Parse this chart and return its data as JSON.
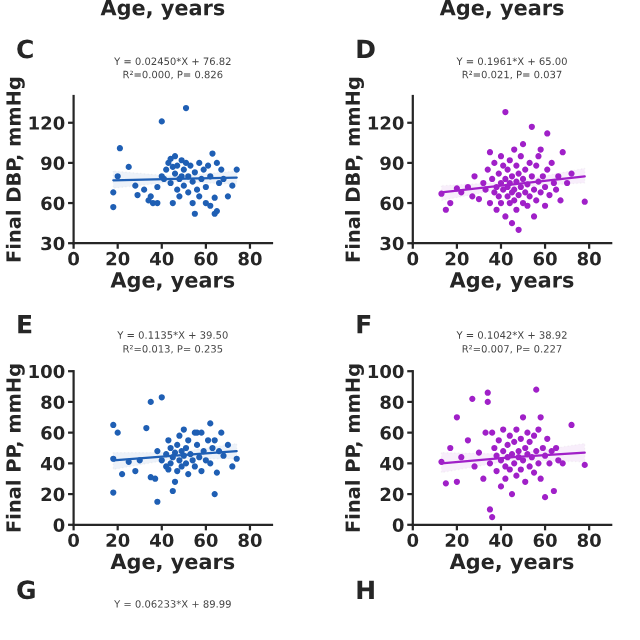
{
  "chart_data": [
    {
      "type": "scatter",
      "title": "C",
      "xlabel": "Age, years",
      "ylabel": "Final DBP, mmHg",
      "xlim": [
        0,
        90
      ],
      "xticks": [
        0,
        20,
        40,
        60,
        80
      ],
      "ylim": [
        30,
        140
      ],
      "yticks": [
        30,
        60,
        90,
        120
      ],
      "grid": false,
      "legend": false,
      "annotations": [
        "Y = 0.02450*X + 76.82",
        "R²=0.000, P= 0.826",
        "Age, years"
      ],
      "series": [
        {
          "marker": "circle",
          "color": "#1f5fb4",
          "x": [
            18,
            18,
            20,
            21,
            25,
            28,
            29,
            32,
            34,
            35,
            36,
            38,
            40,
            38,
            40,
            41,
            42,
            43,
            44,
            44,
            45,
            45,
            46,
            46,
            47,
            47,
            48,
            48,
            49,
            49,
            50,
            50,
            51,
            51,
            52,
            52,
            53,
            54,
            54,
            55,
            55,
            56,
            57,
            57,
            58,
            59,
            60,
            60,
            61,
            62,
            62,
            63,
            64,
            64,
            65,
            65,
            66,
            67,
            68,
            70,
            72,
            74
          ],
          "values": [
            57,
            68,
            80,
            101,
            87,
            73,
            66,
            70,
            62,
            65,
            60,
            60,
            121,
            72,
            80,
            78,
            85,
            90,
            93,
            75,
            60,
            87,
            95,
            82,
            70,
            88,
            78,
            65,
            92,
            80,
            73,
            85,
            131,
            90,
            68,
            80,
            88,
            60,
            76,
            83,
            52,
            70,
            90,
            65,
            78,
            85,
            60,
            72,
            88,
            80,
            58,
            97,
            64,
            52,
            90,
            54,
            75,
            85,
            78,
            65,
            73,
            85
          ]
        },
        {
          "type": "line",
          "marker": "none",
          "color": "#1f5fb4",
          "x": [
            18,
            46,
            74
          ],
          "values": [
            77,
            78,
            79
          ],
          "lower": [
            71,
            76,
            74
          ],
          "upper": [
            84,
            80,
            84
          ]
        }
      ]
    },
    {
      "type": "scatter",
      "title": "D",
      "xlabel": "Age, years",
      "ylabel": "Final DBP, mmHg",
      "xlim": [
        0,
        90
      ],
      "xticks": [
        0,
        20,
        40,
        60,
        80
      ],
      "ylim": [
        30,
        140
      ],
      "yticks": [
        30,
        60,
        90,
        120
      ],
      "grid": false,
      "legend": false,
      "annotations": [
        "Y = 0.1961*X + 65.00",
        "R²=0.021, P= 0.037",
        "Age, years"
      ],
      "series": [
        {
          "marker": "circle",
          "color": "#a020c8",
          "x": [
            13,
            15,
            17,
            20,
            22,
            25,
            27,
            28,
            30,
            32,
            33,
            34,
            35,
            35,
            36,
            37,
            37,
            38,
            38,
            39,
            39,
            40,
            40,
            40,
            41,
            41,
            42,
            42,
            42,
            43,
            43,
            43,
            44,
            44,
            44,
            45,
            45,
            45,
            46,
            46,
            46,
            47,
            47,
            47,
            48,
            48,
            48,
            49,
            49,
            50,
            50,
            50,
            51,
            51,
            52,
            52,
            53,
            53,
            54,
            54,
            55,
            55,
            56,
            56,
            57,
            57,
            58,
            58,
            59,
            60,
            60,
            61,
            61,
            62,
            63,
            64,
            65,
            66,
            67,
            68,
            70,
            72,
            78
          ],
          "values": [
            67,
            55,
            60,
            71,
            68,
            72,
            65,
            80,
            63,
            75,
            70,
            85,
            60,
            98,
            78,
            68,
            90,
            72,
            55,
            82,
            65,
            75,
            95,
            60,
            70,
            88,
            78,
            50,
            128,
            65,
            85,
            72,
            60,
            92,
            75,
            68,
            45,
            80,
            70,
            100,
            62,
            76,
            55,
            88,
            66,
            82,
            40,
            72,
            95,
            60,
            78,
            104,
            68,
            85,
            74,
            58,
            90,
            65,
            117,
            80,
            70,
            50,
            88,
            62,
            76,
            95,
            68,
            100,
            80,
            72,
            58,
            112,
            85,
            66,
            90,
            75,
            70,
            80,
            62,
            98,
            75,
            82,
            61
          ]
        },
        {
          "type": "line",
          "marker": "none",
          "color": "#a020c8",
          "x": [
            13,
            45.5,
            78
          ],
          "values": [
            68,
            74,
            80
          ],
          "lower": [
            62,
            72,
            75
          ],
          "upper": [
            73,
            76,
            86
          ]
        }
      ]
    },
    {
      "type": "scatter",
      "title": "E",
      "xlabel": "Age, years",
      "ylabel": "Final PP, mmHg",
      "xlim": [
        0,
        90
      ],
      "xticks": [
        0,
        20,
        40,
        60,
        80
      ],
      "ylim": [
        0,
        100
      ],
      "yticks": [
        0,
        20,
        40,
        60,
        80,
        100
      ],
      "grid": false,
      "legend": false,
      "annotations": [
        "Y = 0.1135*X + 39.50",
        "R²=0.013, P= 0.235",
        "G",
        "Y = 0.06233*X + 89.99"
      ],
      "series": [
        {
          "marker": "circle",
          "color": "#1f5fb4",
          "x": [
            18,
            18,
            18,
            20,
            22,
            25,
            28,
            30,
            33,
            35,
            35,
            37,
            38,
            38,
            40,
            40,
            42,
            42,
            43,
            43,
            44,
            44,
            45,
            45,
            46,
            46,
            47,
            47,
            48,
            48,
            49,
            49,
            50,
            50,
            51,
            51,
            52,
            52,
            53,
            54,
            55,
            55,
            56,
            56,
            57,
            58,
            58,
            59,
            60,
            61,
            62,
            62,
            63,
            64,
            64,
            65,
            66,
            67,
            68,
            70,
            72,
            74
          ],
          "values": [
            65,
            43,
            21,
            60,
            33,
            41,
            35,
            42,
            63,
            80,
            31,
            30,
            15,
            48,
            83,
            42,
            38,
            46,
            55,
            36,
            40,
            50,
            22,
            44,
            28,
            47,
            35,
            52,
            42,
            58,
            38,
            48,
            62,
            45,
            40,
            50,
            55,
            33,
            46,
            42,
            60,
            38,
            52,
            60,
            44,
            35,
            60,
            48,
            42,
            55,
            66,
            40,
            50,
            20,
            55,
            34,
            48,
            60,
            45,
            52,
            38,
            43
          ]
        },
        {
          "type": "line",
          "marker": "none",
          "color": "#1f5fb4",
          "x": [
            18,
            46,
            74
          ],
          "values": [
            42,
            45,
            48
          ],
          "lower": [
            36,
            43,
            43
          ],
          "upper": [
            47,
            47,
            53
          ]
        }
      ]
    },
    {
      "type": "scatter",
      "title": "F",
      "xlabel": "Age, years",
      "ylabel": "Final PP, mmHg",
      "xlim": [
        0,
        90
      ],
      "xticks": [
        0,
        20,
        40,
        60,
        80
      ],
      "ylim": [
        0,
        100
      ],
      "yticks": [
        0,
        20,
        40,
        60,
        80,
        100
      ],
      "grid": false,
      "legend": false,
      "annotations": [
        "Y = 0.1042*X + 38.92",
        "R²=0.007, P= 0.227",
        "H"
      ],
      "series": [
        {
          "marker": "circle",
          "color": "#a020c8",
          "x": [
            13,
            15,
            17,
            20,
            20,
            22,
            25,
            27,
            28,
            30,
            32,
            33,
            34,
            34,
            35,
            35,
            36,
            36,
            37,
            38,
            38,
            39,
            40,
            40,
            41,
            41,
            42,
            42,
            43,
            43,
            44,
            44,
            45,
            45,
            46,
            46,
            47,
            47,
            48,
            48,
            49,
            49,
            50,
            50,
            51,
            51,
            52,
            52,
            53,
            53,
            54,
            55,
            55,
            56,
            56,
            57,
            57,
            58,
            58,
            59,
            60,
            60,
            61,
            62,
            63,
            64,
            65,
            66,
            68,
            72,
            78
          ],
          "values": [
            41,
            27,
            50,
            28,
            70,
            44,
            55,
            82,
            38,
            47,
            30,
            60,
            80,
            86,
            10,
            40,
            5,
            60,
            50,
            35,
            45,
            55,
            42,
            25,
            48,
            62,
            38,
            30,
            52,
            44,
            58,
            36,
            46,
            20,
            54,
            40,
            62,
            32,
            48,
            44,
            56,
            36,
            70,
            42,
            50,
            28,
            60,
            46,
            38,
            54,
            44,
            58,
            34,
            88,
            48,
            40,
            62,
            70,
            30,
            50,
            18,
            45,
            56,
            40,
            48,
            22,
            50,
            42,
            40,
            65,
            39
          ]
        },
        {
          "type": "line",
          "marker": "none",
          "color": "#a020c8",
          "x": [
            13,
            45.5,
            78
          ],
          "values": [
            40,
            44,
            47
          ],
          "lower": [
            34,
            42,
            41
          ],
          "upper": [
            47,
            46,
            53
          ]
        }
      ]
    }
  ]
}
